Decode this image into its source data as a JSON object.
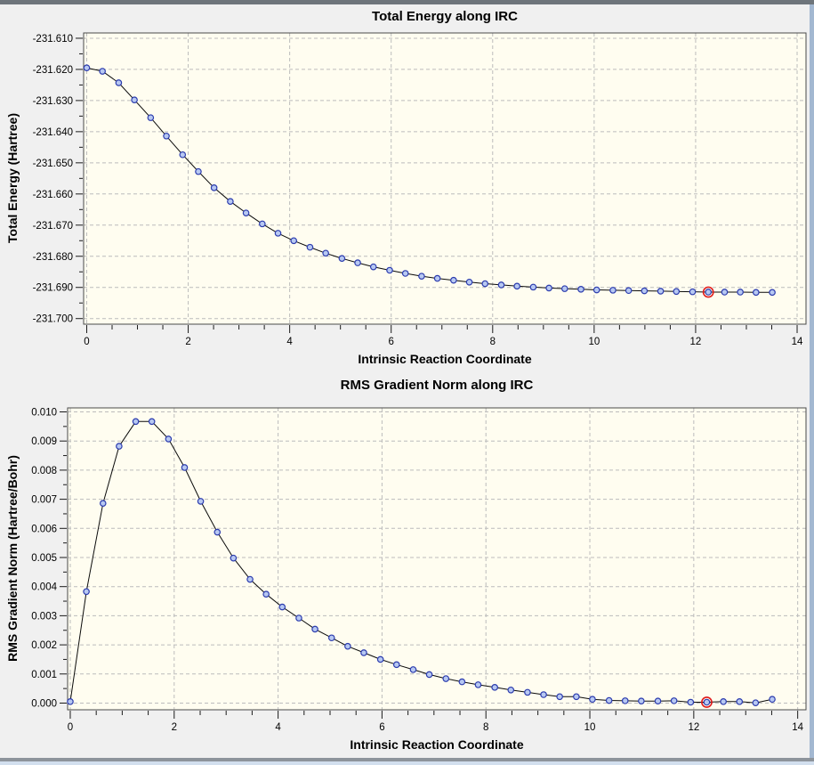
{
  "window": {
    "top_strip_color": "#6e757b",
    "right_strip_color": "#a3b8d1",
    "bottom_strip_color": "#8d949b",
    "bottom_edge_color": "#d2dfee",
    "background": "#f0f0f0"
  },
  "chart_data": [
    {
      "type": "line",
      "title": "Total Energy along IRC",
      "xlabel": "Intrinsic Reaction Coordinate",
      "ylabel": "Total Energy (Hartree)",
      "xlim": [
        -0.061,
        14.175
      ],
      "ylim": [
        -231.7018,
        -231.6083
      ],
      "grid": "dashed",
      "x_ticks": {
        "values": [
          0,
          2,
          4,
          6,
          8,
          10,
          12,
          14
        ],
        "labels": [
          "0",
          "2",
          "4",
          "6",
          "8",
          "10",
          "12",
          "14"
        ],
        "minor_step": 0.5
      },
      "y_ticks": {
        "values": [
          -231.61,
          -231.62,
          -231.63,
          -231.64,
          -231.65,
          -231.66,
          -231.67,
          -231.68,
          -231.69,
          -231.7
        ],
        "labels": [
          "-231.610",
          "-231.620",
          "-231.630",
          "-231.640",
          "-231.650",
          "-231.660",
          "-231.670",
          "-231.680",
          "-231.690",
          "-231.700"
        ],
        "minor_step": 0.005
      },
      "line_color": "#0a0a0a",
      "marker_fill": "#b7c8f2",
      "marker_edge": "#2c3cae",
      "highlight_color": "#e01b1b",
      "highlighted_point_index": 39,
      "x": [
        0,
        0.31,
        0.63,
        0.94,
        1.26,
        1.57,
        1.89,
        2.2,
        2.51,
        2.83,
        3.14,
        3.46,
        3.77,
        4.08,
        4.4,
        4.71,
        5.03,
        5.34,
        5.65,
        5.97,
        6.28,
        6.6,
        6.91,
        7.23,
        7.54,
        7.85,
        8.17,
        8.48,
        8.8,
        9.11,
        9.42,
        9.74,
        10.05,
        10.37,
        10.68,
        10.99,
        11.31,
        11.62,
        11.94,
        12.25,
        12.57,
        12.88,
        13.19,
        13.51
      ],
      "y": [
        -231.6195,
        -231.6206,
        -231.6243,
        -231.6298,
        -231.6355,
        -231.6414,
        -231.6474,
        -231.6528,
        -231.658,
        -231.6624,
        -231.6661,
        -231.6696,
        -231.6726,
        -231.675,
        -231.6771,
        -231.679,
        -231.6807,
        -231.6821,
        -231.6834,
        -231.6845,
        -231.6855,
        -231.6864,
        -231.6871,
        -231.6877,
        -231.6883,
        -231.6888,
        -231.6892,
        -231.6896,
        -231.6899,
        -231.6902,
        -231.6904,
        -231.6906,
        -231.6908,
        -231.6909,
        -231.691,
        -231.6911,
        -231.6912,
        -231.6913,
        -231.6914,
        -231.6915,
        -231.6915,
        -231.6915,
        -231.6916,
        -231.6916
      ],
      "plot_background": "#fffdf0",
      "border_color": "#4a4a4a",
      "grid_color": "#bcbcbc"
    },
    {
      "type": "line",
      "title": "RMS Gradient Norm along IRC",
      "xlabel": "Intrinsic Reaction Coordinate",
      "ylabel": "RMS Gradient Norm (Hartree/Bohr)",
      "xlim": [
        -0.051,
        14.16
      ],
      "ylim": [
        -0.00023,
        0.010138
      ],
      "grid": "dashed",
      "x_ticks": {
        "values": [
          0,
          2,
          4,
          6,
          8,
          10,
          12,
          14
        ],
        "labels": [
          "0",
          "2",
          "4",
          "6",
          "8",
          "10",
          "12",
          "14"
        ],
        "minor_step": 0.5
      },
      "y_ticks": {
        "values": [
          0.0,
          0.001,
          0.002,
          0.003,
          0.004,
          0.005,
          0.006,
          0.007,
          0.008,
          0.009,
          0.01
        ],
        "labels": [
          "0.000",
          "0.001",
          "0.002",
          "0.003",
          "0.004",
          "0.005",
          "0.006",
          "0.007",
          "0.008",
          "0.009",
          "0.010"
        ],
        "minor_step": 0.0005
      },
      "line_color": "#0a0a0a",
      "marker_fill": "#b7c8f2",
      "marker_edge": "#2c3cae",
      "highlight_color": "#e01b1b",
      "highlighted_point_index": 39,
      "x": [
        0,
        0.31,
        0.63,
        0.94,
        1.26,
        1.57,
        1.89,
        2.2,
        2.51,
        2.83,
        3.14,
        3.46,
        3.77,
        4.08,
        4.4,
        4.71,
        5.03,
        5.34,
        5.65,
        5.97,
        6.28,
        6.6,
        6.91,
        7.23,
        7.54,
        7.85,
        8.17,
        8.48,
        8.8,
        9.11,
        9.42,
        9.74,
        10.05,
        10.37,
        10.68,
        10.99,
        11.31,
        11.62,
        11.94,
        12.25,
        12.57,
        12.88,
        13.19,
        13.51
      ],
      "y": [
        5e-05,
        0.00383,
        0.00686,
        0.00882,
        0.00967,
        0.00967,
        0.00907,
        0.00809,
        0.00693,
        0.00587,
        0.00498,
        0.00425,
        0.00374,
        0.0033,
        0.00292,
        0.00254,
        0.00224,
        0.00195,
        0.00173,
        0.0015,
        0.00132,
        0.00115,
        0.00098,
        0.00084,
        0.00073,
        0.00063,
        0.00054,
        0.00045,
        0.00037,
        0.00029,
        0.00022,
        0.00022,
        0.00013,
        9e-05,
        8e-05,
        7e-05,
        7e-05,
        8e-05,
        3e-05,
        3e-05,
        5e-05,
        5e-05,
        1e-05,
        0.00013
      ],
      "plot_background": "#fffdf0",
      "border_color": "#4a4a4a",
      "grid_color": "#bcbcbc"
    }
  ]
}
